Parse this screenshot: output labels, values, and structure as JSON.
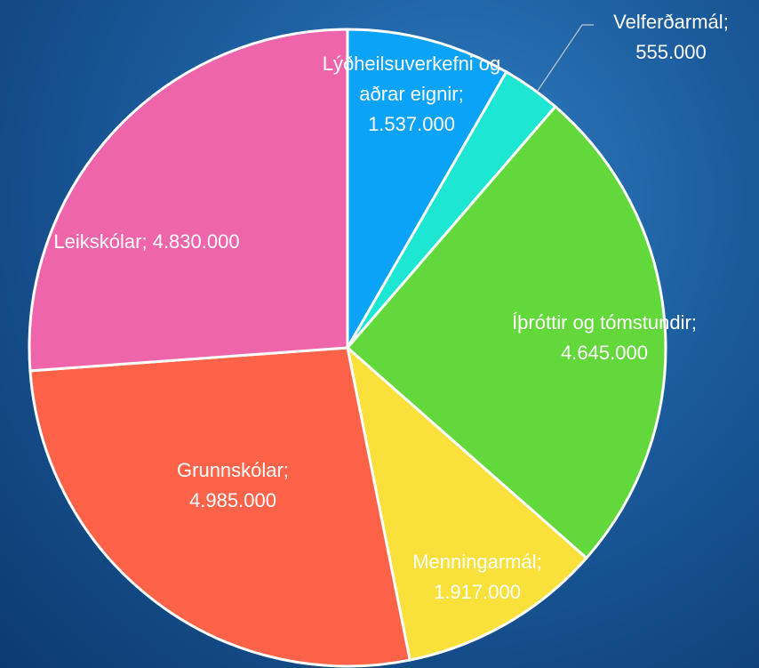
{
  "chart_data": {
    "type": "pie",
    "categories": [
      "Lýðheilsuverkefni og aðrar eignir",
      "Velferðarmál",
      "Íþróttir og tómstundir",
      "Menningarmál",
      "Grunnskólar",
      "Leikskólar"
    ],
    "values": [
      1537000,
      555000,
      4645000,
      1917000,
      4985000,
      4830000
    ],
    "value_labels": [
      "1.537.000",
      "555.000",
      "4.645.000",
      "1.917.000",
      "4.985.000",
      "4.830.000"
    ],
    "separator": ";",
    "colors": [
      "#0ba3f7",
      "#1de6d2",
      "#63d83a",
      "#f9e03b",
      "#fe634a",
      "#ef65ab"
    ]
  }
}
